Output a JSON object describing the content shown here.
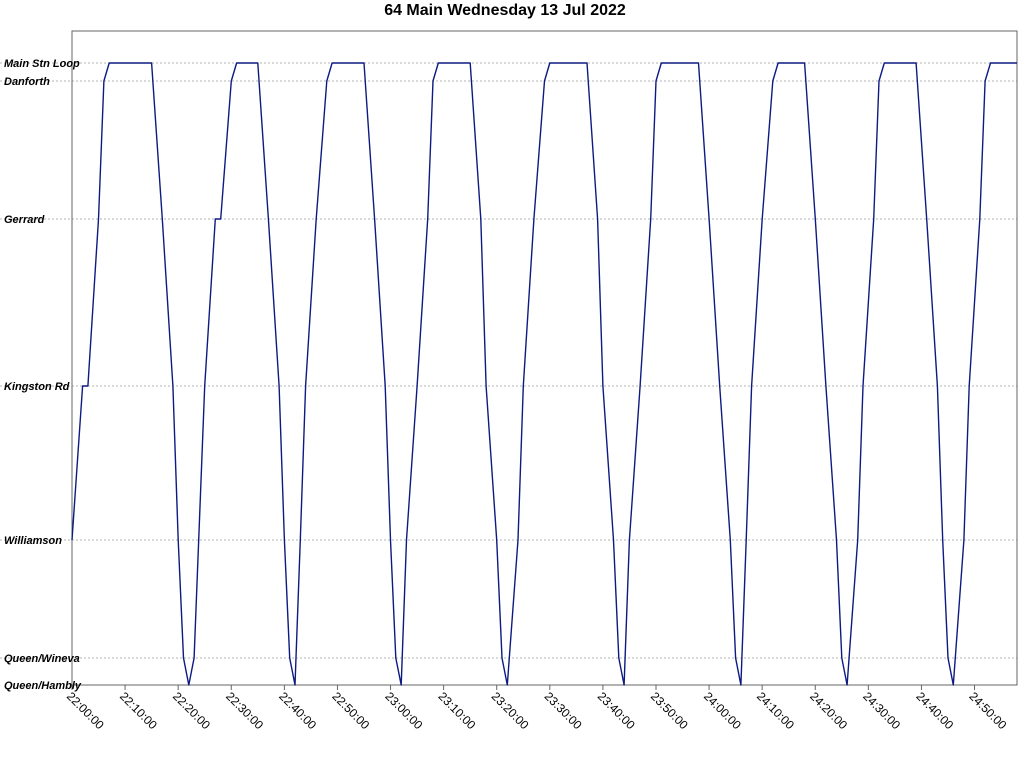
{
  "chart_data": {
    "type": "line",
    "title": "64 Main Wednesday 13 Jul 2022",
    "xlabel": "",
    "ylabel": "",
    "x_range": [
      "22:00:00",
      "24:58:00"
    ],
    "x_ticks": [
      "22:00:00",
      "22:10:00",
      "22:20:00",
      "22:30:00",
      "22:40:00",
      "22:50:00",
      "23:00:00",
      "23:10:00",
      "23:20:00",
      "23:30:00",
      "23:40:00",
      "23:50:00",
      "24:00:00",
      "24:10:00",
      "24:20:00",
      "24:30:00",
      "24:40:00",
      "24:50:00"
    ],
    "y_categories": [
      "Main Stn Loop",
      "Danforth",
      "Gerrard",
      "Kingston Rd",
      "Williamson",
      "Queen/Wineva",
      "Queen/Hambly"
    ],
    "grid": true,
    "line_color": "#0d1a80",
    "series": [
      {
        "values": [
          [
            "22:00:00",
            "Williamson"
          ],
          [
            "22:02:00",
            "Kingston Rd"
          ],
          [
            "22:03:00",
            "Kingston Rd"
          ],
          [
            "22:05:00",
            "Gerrard"
          ],
          [
            "22:06:00",
            "Danforth"
          ],
          [
            "22:07:00",
            "Main Stn Loop"
          ],
          [
            "22:15:00",
            "Main Stn Loop"
          ],
          [
            "22:17:00",
            "Gerrard"
          ],
          [
            "22:19:00",
            "Kingston Rd"
          ],
          [
            "22:20:00",
            "Williamson"
          ],
          [
            "22:21:00",
            "Queen/Wineva"
          ],
          [
            "22:22:00",
            "Queen/Hambly"
          ],
          [
            "22:23:00",
            "Queen/Wineva"
          ],
          [
            "22:25:00",
            "Kingston Rd"
          ],
          [
            "22:27:00",
            "Gerrard"
          ],
          [
            "22:28:00",
            "Gerrard"
          ],
          [
            "22:30:00",
            "Danforth"
          ],
          [
            "22:31:00",
            "Main Stn Loop"
          ],
          [
            "22:35:00",
            "Main Stn Loop"
          ],
          [
            "22:37:00",
            "Gerrard"
          ],
          [
            "22:39:00",
            "Kingston Rd"
          ],
          [
            "22:40:00",
            "Williamson"
          ],
          [
            "22:41:00",
            "Queen/Wineva"
          ],
          [
            "22:42:00",
            "Queen/Hambly"
          ],
          [
            "22:43:00",
            "Williamson"
          ],
          [
            "22:44:00",
            "Kingston Rd"
          ],
          [
            "22:46:00",
            "Gerrard"
          ],
          [
            "22:48:00",
            "Danforth"
          ],
          [
            "22:49:00",
            "Main Stn Loop"
          ],
          [
            "22:55:00",
            "Main Stn Loop"
          ],
          [
            "22:57:00",
            "Gerrard"
          ],
          [
            "22:59:00",
            "Kingston Rd"
          ],
          [
            "23:00:00",
            "Williamson"
          ],
          [
            "23:01:00",
            "Queen/Wineva"
          ],
          [
            "23:02:00",
            "Queen/Hambly"
          ],
          [
            "23:03:00",
            "Williamson"
          ],
          [
            "23:05:00",
            "Kingston Rd"
          ],
          [
            "23:07:00",
            "Gerrard"
          ],
          [
            "23:08:00",
            "Danforth"
          ],
          [
            "23:09:00",
            "Main Stn Loop"
          ],
          [
            "23:15:00",
            "Main Stn Loop"
          ],
          [
            "23:17:00",
            "Gerrard"
          ],
          [
            "23:18:00",
            "Kingston Rd"
          ],
          [
            "23:20:00",
            "Williamson"
          ],
          [
            "23:21:00",
            "Queen/Wineva"
          ],
          [
            "23:22:00",
            "Queen/Hambly"
          ],
          [
            "23:24:00",
            "Williamson"
          ],
          [
            "23:25:00",
            "Kingston Rd"
          ],
          [
            "23:27:00",
            "Gerrard"
          ],
          [
            "23:29:00",
            "Danforth"
          ],
          [
            "23:30:00",
            "Main Stn Loop"
          ],
          [
            "23:37:00",
            "Main Stn Loop"
          ],
          [
            "23:39:00",
            "Gerrard"
          ],
          [
            "23:40:00",
            "Kingston Rd"
          ],
          [
            "23:42:00",
            "Williamson"
          ],
          [
            "23:43:00",
            "Queen/Wineva"
          ],
          [
            "23:44:00",
            "Queen/Hambly"
          ],
          [
            "23:45:00",
            "Williamson"
          ],
          [
            "23:47:00",
            "Kingston Rd"
          ],
          [
            "23:49:00",
            "Gerrard"
          ],
          [
            "23:50:00",
            "Danforth"
          ],
          [
            "23:51:00",
            "Main Stn Loop"
          ],
          [
            "23:58:00",
            "Main Stn Loop"
          ],
          [
            "24:00:00",
            "Gerrard"
          ],
          [
            "24:02:00",
            "Kingston Rd"
          ],
          [
            "24:04:00",
            "Williamson"
          ],
          [
            "24:05:00",
            "Queen/Wineva"
          ],
          [
            "24:06:00",
            "Queen/Hambly"
          ],
          [
            "24:07:00",
            "Williamson"
          ],
          [
            "24:08:00",
            "Kingston Rd"
          ],
          [
            "24:10:00",
            "Gerrard"
          ],
          [
            "24:12:00",
            "Danforth"
          ],
          [
            "24:13:00",
            "Main Stn Loop"
          ],
          [
            "24:18:00",
            "Main Stn Loop"
          ],
          [
            "24:20:00",
            "Gerrard"
          ],
          [
            "24:22:00",
            "Kingston Rd"
          ],
          [
            "24:24:00",
            "Williamson"
          ],
          [
            "24:25:00",
            "Queen/Wineva"
          ],
          [
            "24:26:00",
            "Queen/Hambly"
          ],
          [
            "24:28:00",
            "Williamson"
          ],
          [
            "24:29:00",
            "Kingston Rd"
          ],
          [
            "24:31:00",
            "Gerrard"
          ],
          [
            "24:32:00",
            "Danforth"
          ],
          [
            "24:33:00",
            "Main Stn Loop"
          ],
          [
            "24:39:00",
            "Main Stn Loop"
          ],
          [
            "24:41:00",
            "Gerrard"
          ],
          [
            "24:43:00",
            "Kingston Rd"
          ],
          [
            "24:44:00",
            "Williamson"
          ],
          [
            "24:45:00",
            "Queen/Wineva"
          ],
          [
            "24:46:00",
            "Queen/Hambly"
          ],
          [
            "24:48:00",
            "Williamson"
          ],
          [
            "24:49:00",
            "Kingston Rd"
          ],
          [
            "24:51:00",
            "Gerrard"
          ],
          [
            "24:52:00",
            "Danforth"
          ],
          [
            "24:53:00",
            "Main Stn Loop"
          ],
          [
            "24:58:00",
            "Main Stn Loop"
          ]
        ]
      }
    ]
  }
}
